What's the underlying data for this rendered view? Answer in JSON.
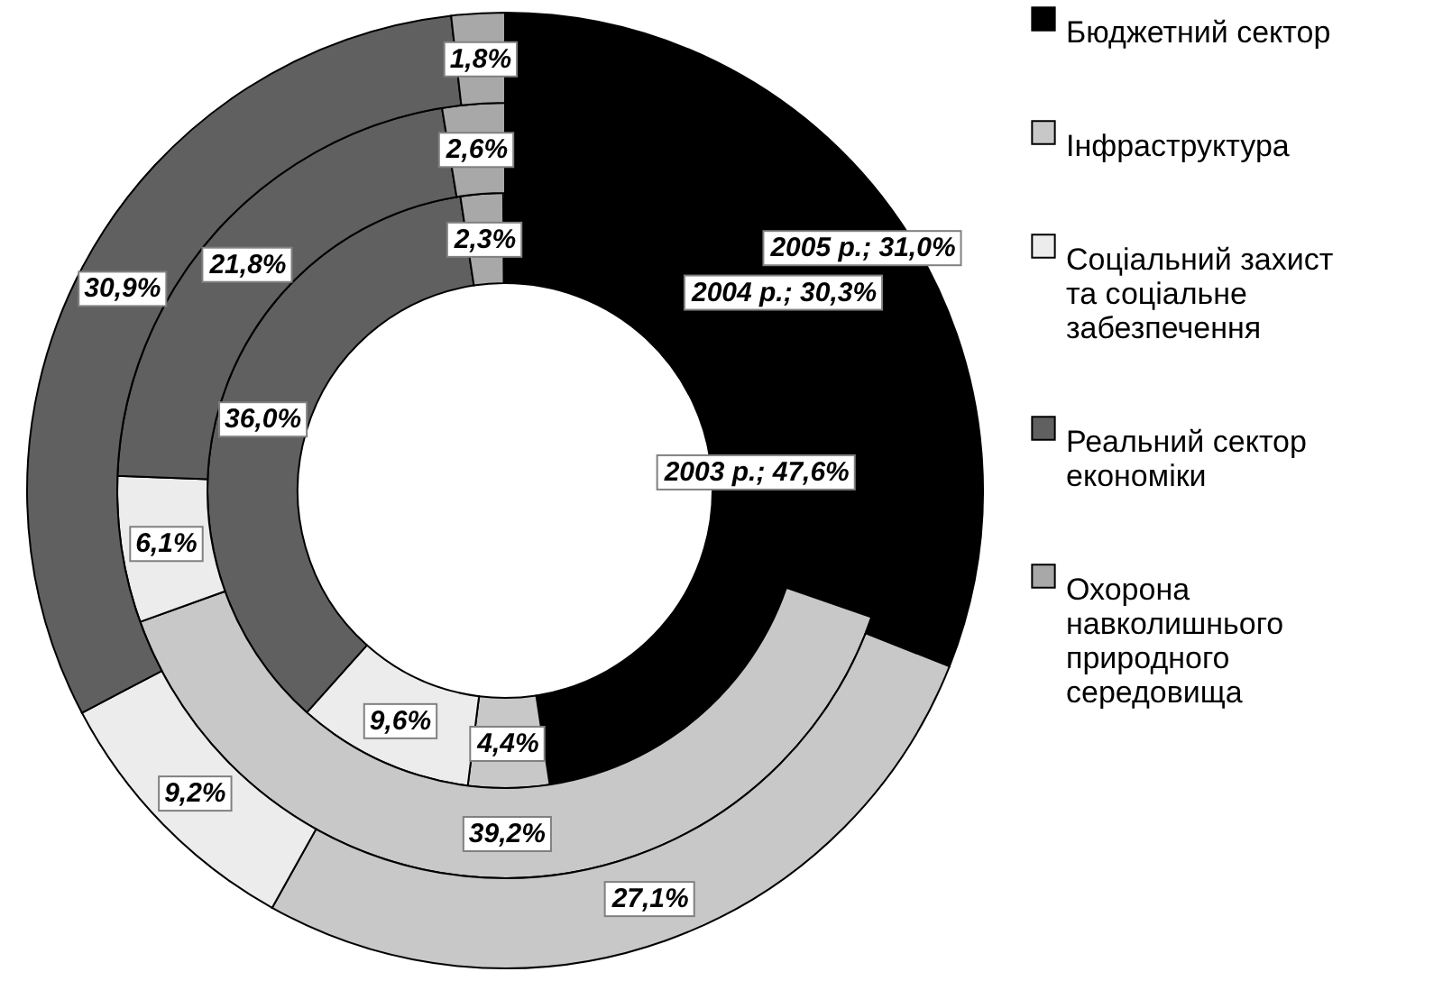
{
  "chart_data": {
    "type": "donut",
    "categories": [
      "Бюджетний сектор",
      "Інфраструктура",
      "Соціальний захист та соціальне забезпечення",
      "Реальний сектор економіки",
      "Охорона навколишнього природного середовища"
    ],
    "colors": [
      "#000000",
      "#c8c8c8",
      "#ececec",
      "#606060",
      "#a8a8a8"
    ],
    "series": [
      {
        "values": [
          47.6,
          4.4,
          9.6,
          36.0,
          2.3
        ],
        "value_labels": [
          "2003 р.; 47,6%",
          "4,4%",
          "9,6%",
          "36,0%",
          "2,3%"
        ]
      },
      {
        "values": [
          30.3,
          39.2,
          6.1,
          21.8,
          2.6
        ],
        "value_labels": [
          "2004 р.; 30,3%",
          "39,2%",
          "6,1%",
          "21,8%",
          "2,6%"
        ]
      },
      {
        "values": [
          31.0,
          27.1,
          9.2,
          30.9,
          1.8
        ],
        "value_labels": [
          "2005 р.; 31,0%",
          "27,1%",
          "9,2%",
          "30,9%",
          "1,8%"
        ]
      }
    ],
    "legend": "right"
  }
}
